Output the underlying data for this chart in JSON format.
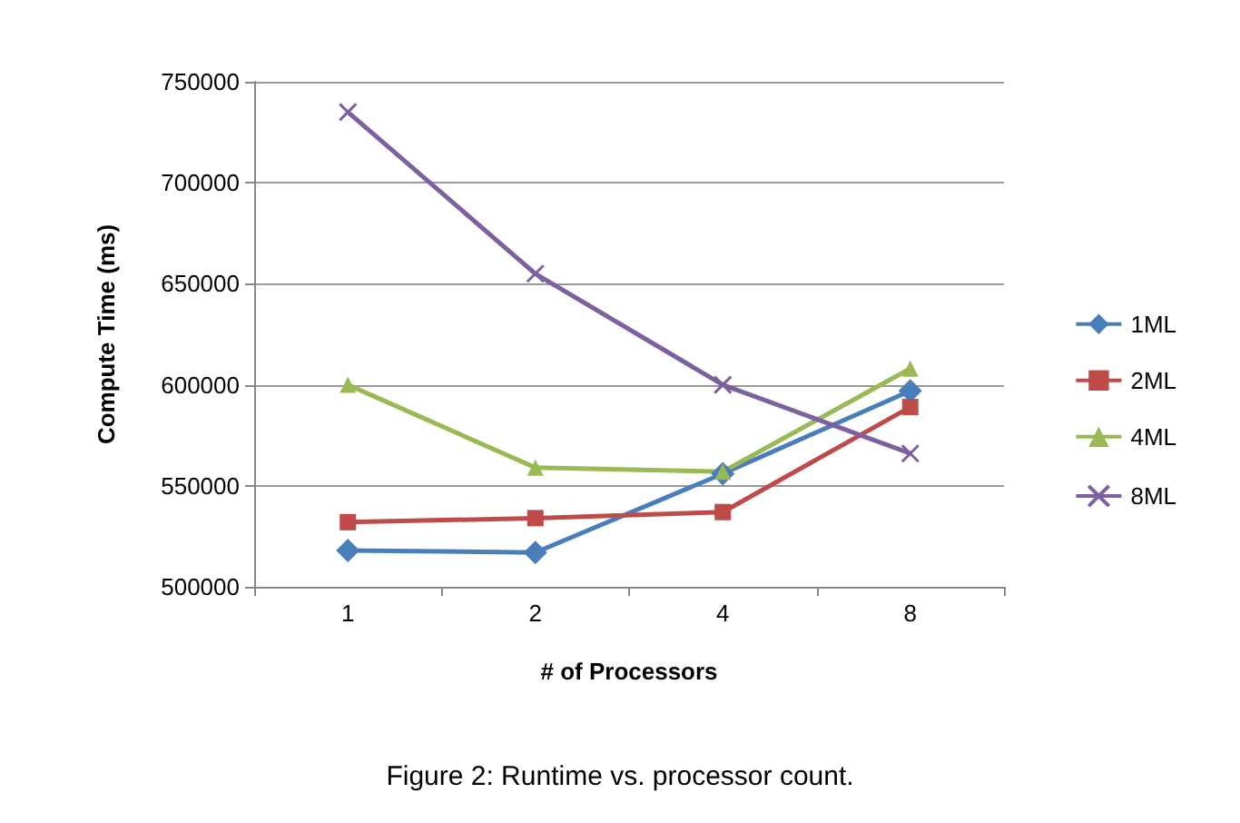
{
  "chart_data": {
    "type": "line",
    "categories": [
      "1",
      "2",
      "4",
      "8"
    ],
    "xlabel": "# of Processors",
    "ylabel": "Compute Time (ms)",
    "ylim": [
      500000,
      750000
    ],
    "yticks": [
      500000,
      550000,
      600000,
      650000,
      700000,
      750000
    ],
    "grid": "y",
    "legend": "right",
    "annotations": [
      "Figure 2: Runtime vs. processor count."
    ],
    "series": [
      {
        "name": "1ML",
        "color": "#4a7ebb",
        "marker": "diamond",
        "values": [
          518000,
          517000,
          556000,
          597000
        ]
      },
      {
        "name": "2ML",
        "color": "#be4b48",
        "marker": "square",
        "values": [
          532000,
          534000,
          537000,
          589000
        ]
      },
      {
        "name": "4ML",
        "color": "#98b954",
        "marker": "triangle",
        "values": [
          600000,
          559000,
          557000,
          608000
        ]
      },
      {
        "name": "8ML",
        "color": "#7d60a0",
        "marker": "cross",
        "values": [
          735000,
          655000,
          600000,
          566000
        ]
      }
    ]
  }
}
